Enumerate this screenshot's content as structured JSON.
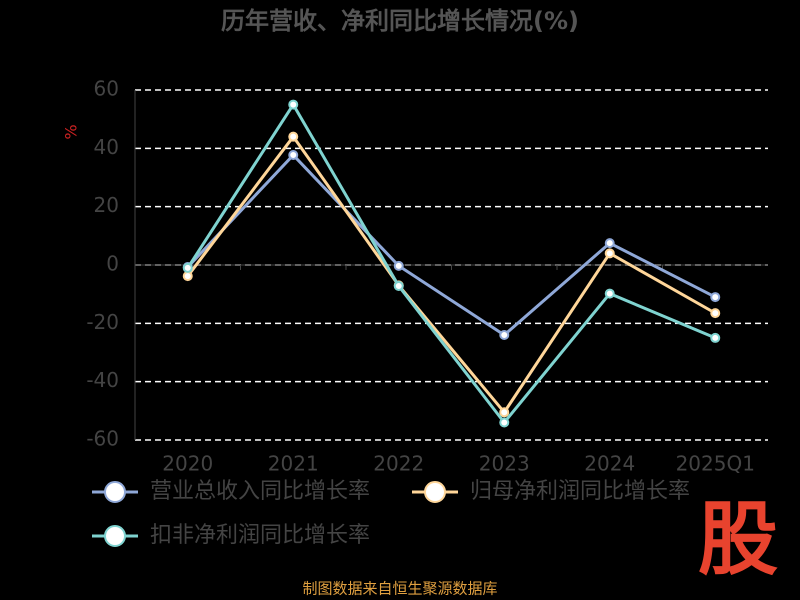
{
  "chart_data": {
    "type": "line",
    "title": "历年营收、净利同比增长情况(%)",
    "y_label": "%",
    "categories": [
      "2020",
      "2021",
      "2022",
      "2023",
      "2024",
      "2025Q1"
    ],
    "series": [
      {
        "name": "营业总收入同比增长率",
        "color": "#8fa8d8",
        "values": [
          -0.7,
          37.7,
          -0.3,
          -24,
          7.5,
          -11
        ]
      },
      {
        "name": "归母净利润同比增长率",
        "color": "#ffd699",
        "values": [
          -3.8,
          44,
          -7,
          -50.5,
          4,
          -16.5
        ]
      },
      {
        "name": "扣非净利润同比增长率",
        "color": "#7fd3d0",
        "values": [
          -1,
          55,
          -7.2,
          -54,
          -9.8,
          -25
        ]
      }
    ],
    "ylim": [
      -60,
      60
    ],
    "yticks": [
      -60,
      -40,
      -20,
      0,
      20,
      40,
      60
    ],
    "grid": true
  },
  "footer": "制图数据来自恒生聚源数据库",
  "logo": "股"
}
